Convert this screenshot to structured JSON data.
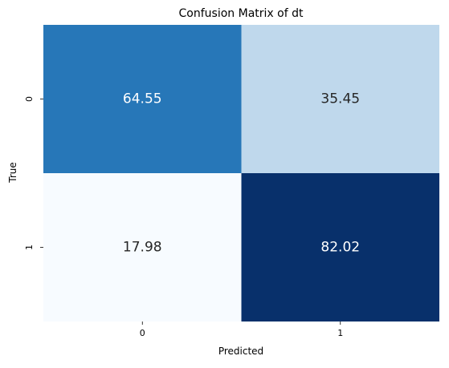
{
  "chart_data": {
    "type": "heatmap",
    "title": "Confusion Matrix of dt",
    "xlabel": "Predicted",
    "ylabel": "True",
    "x_categories": [
      "0",
      "1"
    ],
    "y_categories": [
      "0",
      "1"
    ],
    "values": [
      [
        64.55,
        35.45
      ],
      [
        17.98,
        82.02
      ]
    ],
    "value_labels": [
      [
        "64.55",
        "35.45"
      ],
      [
        "17.98",
        "82.02"
      ]
    ],
    "colormap": "Blues",
    "color_range": [
      17.98,
      82.02
    ],
    "colorbar": false
  }
}
